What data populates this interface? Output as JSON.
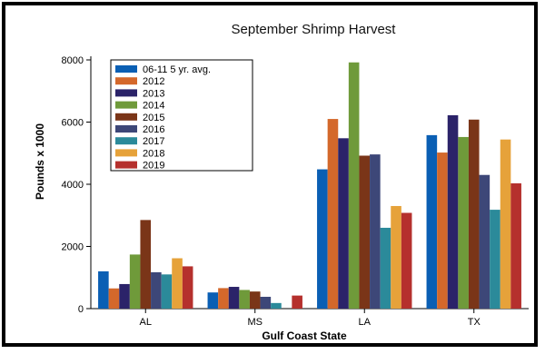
{
  "chart_data": {
    "type": "bar",
    "title": "September Shrimp Harvest",
    "xlabel": "Gulf Coast State",
    "ylabel": "Pounds x 1000",
    "ylim": [
      0,
      8000
    ],
    "yticks": [
      0,
      2000,
      4000,
      6000,
      8000
    ],
    "grid": false,
    "legend_position": "top-left",
    "categories": [
      "AL",
      "MS",
      "LA",
      "TX"
    ],
    "series": [
      {
        "name": "06-11 5 yr. avg.",
        "color": "#0a5fb4",
        "values": [
          1200,
          520,
          4480,
          5580
        ]
      },
      {
        "name": "2012",
        "color": "#d4682b",
        "values": [
          650,
          660,
          6100,
          5020
        ]
      },
      {
        "name": "2013",
        "color": "#2b2369",
        "values": [
          790,
          700,
          5480,
          6220
        ]
      },
      {
        "name": "2014",
        "color": "#6f9a3a",
        "values": [
          1740,
          600,
          7920,
          5520
        ]
      },
      {
        "name": "2015",
        "color": "#7a3518",
        "values": [
          2850,
          550,
          4920,
          6080
        ]
      },
      {
        "name": "2016",
        "color": "#3d4778",
        "values": [
          1170,
          380,
          4960,
          4300
        ]
      },
      {
        "name": "2017",
        "color": "#2b8a9a",
        "values": [
          1100,
          180,
          2600,
          3180
        ]
      },
      {
        "name": "2018",
        "color": "#e6a23a",
        "values": [
          1620,
          0,
          3300,
          5440
        ]
      },
      {
        "name": "2019",
        "color": "#b5302d",
        "values": [
          1360,
          420,
          3080,
          4030
        ]
      }
    ]
  }
}
